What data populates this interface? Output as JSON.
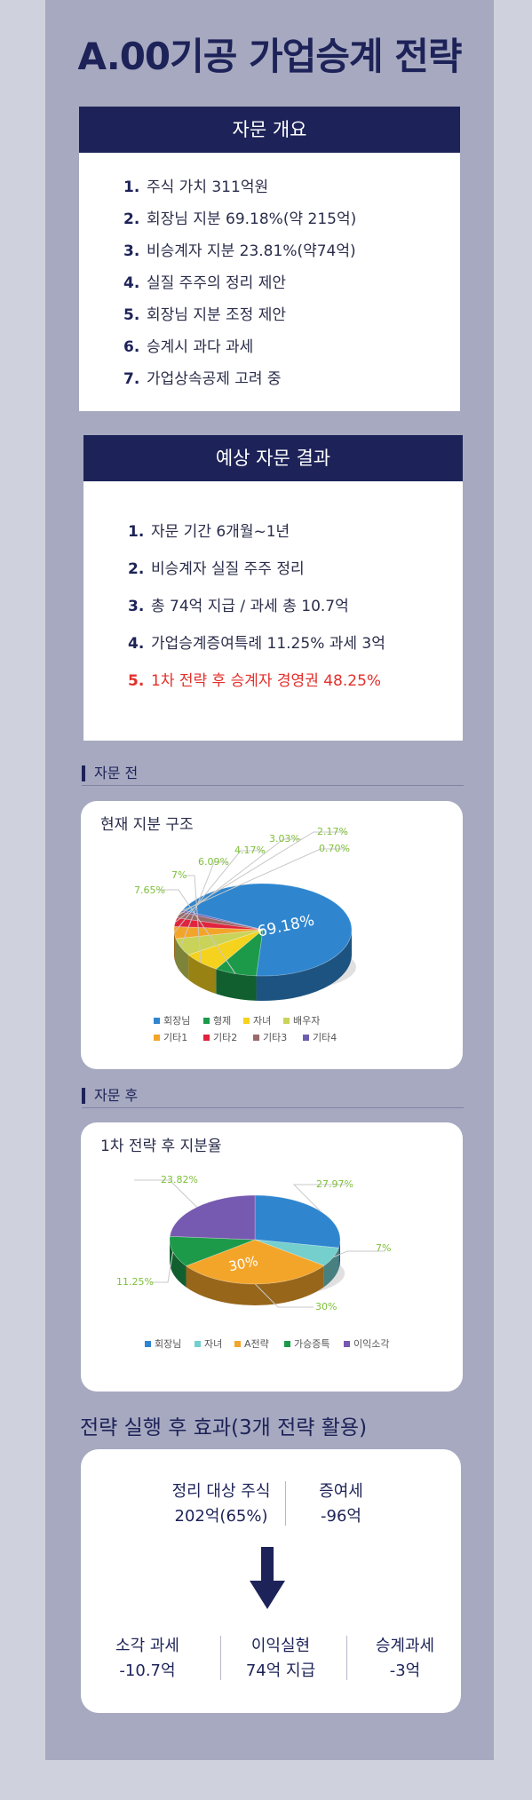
{
  "title": "A.00기공 가업승계 전략",
  "overview": {
    "heading": "자문 개요",
    "items": [
      {
        "num": "1.",
        "text": "주식 가치 311억원"
      },
      {
        "num": "2.",
        "text": "회장님 지분 69.18%(약 215억)"
      },
      {
        "num": "3.",
        "text": "비승계자 지분 23.81%(약74억)"
      },
      {
        "num": "4.",
        "text": "실질 주주의 정리 제안"
      },
      {
        "num": "5.",
        "text": "회장님 지분 조정 제안"
      },
      {
        "num": "6.",
        "text": "승계시 과다 과세"
      },
      {
        "num": "7.",
        "text": "가업상속공제 고려 중"
      }
    ]
  },
  "results": {
    "heading": "예상 자문 결과",
    "items": [
      {
        "num": "1.",
        "text": "자문 기간 6개월~1년"
      },
      {
        "num": "2.",
        "text": "비승계자 실질 주주 정리"
      },
      {
        "num": "3.",
        "text": "총 74억 지급 / 과세 총 10.7억"
      },
      {
        "num": "4.",
        "text": "가업승계증여특례 11.25% 과세 3억"
      },
      {
        "num": "5.",
        "text": "1차 전략 후 승계자 경영권 48.25%",
        "highlight": true
      }
    ]
  },
  "before": {
    "section_label": "자문 전",
    "card_title": "현재 지분 구조"
  },
  "after": {
    "section_label": "자문 후",
    "card_title": "1차 전략 후 지분율"
  },
  "chart_data": [
    {
      "type": "pie",
      "title": "현재 지분 구조",
      "categories": [
        "회장님",
        "형제",
        "자녀",
        "배우자",
        "기타1",
        "기타2",
        "기타3",
        "기타4"
      ],
      "values": [
        69.18,
        7.65,
        7,
        6.09,
        4.17,
        3.03,
        2.17,
        0.7
      ],
      "labels": [
        "69.18%",
        "7.65%",
        "7%",
        "6.09%",
        "4.17%",
        "3.03%",
        "2.17%",
        "0.70%"
      ],
      "colors": [
        "#2f86cf",
        "#1c9a4a",
        "#f5d21e",
        "#c9d35a",
        "#f3a52a",
        "#e0243d",
        "#9a6a6a",
        "#6f5db0"
      ],
      "legend_position": "bottom"
    },
    {
      "type": "pie",
      "title": "1차 전략 후 지분율",
      "categories": [
        "회장님",
        "자녀",
        "A전략",
        "가승증특",
        "이익소각"
      ],
      "values": [
        27.97,
        7,
        30,
        11.25,
        23.82
      ],
      "labels": [
        "27.97%",
        "7%",
        "30%",
        "11.25%",
        "23.82%"
      ],
      "colors": [
        "#2f86cf",
        "#74cfcd",
        "#f3a52a",
        "#1c9a4a",
        "#7659b0"
      ],
      "legend_position": "bottom"
    }
  ],
  "effects": {
    "heading": "전략 실행 후 효과(3개 전략 활용)",
    "top": [
      {
        "label": "정리 대상 주식",
        "value": "202억(65%)"
      },
      {
        "label": "증여세",
        "value": "-96억"
      }
    ],
    "arrow_icon": "down-arrow-icon",
    "bottom": [
      {
        "label": "소각 과세",
        "value": "-10.7억"
      },
      {
        "label": "이익실현",
        "value": "74억 지급"
      },
      {
        "label": "승계과세",
        "value": "-3억"
      }
    ]
  }
}
